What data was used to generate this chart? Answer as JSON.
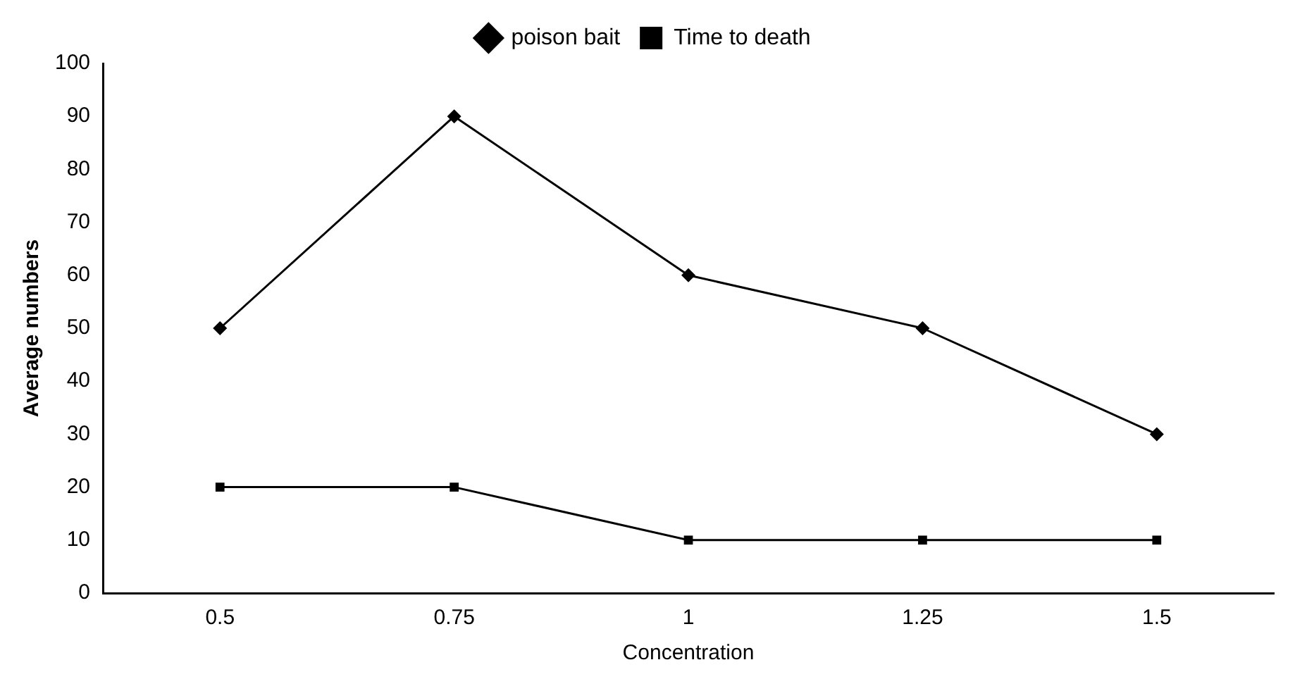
{
  "chart_data": {
    "type": "line",
    "xlabel": "Concentration",
    "ylabel": "Average numbers",
    "categories": [
      "0.5",
      "0.75",
      "1",
      "1.25",
      "1.5"
    ],
    "series": [
      {
        "name": "poison bait",
        "color": "#000000",
        "marker": "diamond",
        "values": [
          50,
          90,
          60,
          50,
          30
        ]
      },
      {
        "name": "Time to death",
        "color": "#000000",
        "marker": "square",
        "values": [
          20,
          20,
          10,
          10,
          10
        ]
      }
    ],
    "ylim": [
      0,
      100
    ],
    "yticks": [
      0,
      10,
      20,
      30,
      40,
      50,
      60,
      70,
      80,
      90,
      100
    ],
    "grid": false,
    "legend": "top",
    "line_style": "solid"
  }
}
